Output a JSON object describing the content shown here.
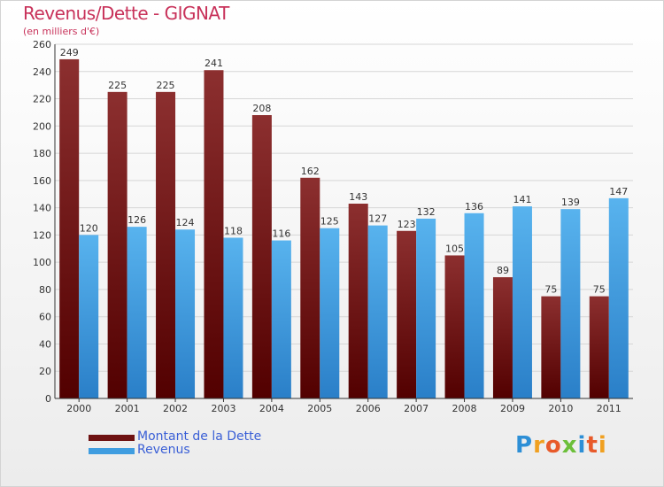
{
  "title": "Revenus/Dette - GIGNAT",
  "subtitle": "(en milliers d'€)",
  "legend": [
    {
      "label": "Montant de la Dette",
      "color": "#7a1e1e"
    },
    {
      "label": "Revenus",
      "color": "#3f9de0"
    }
  ],
  "logo": {
    "letters": [
      "P",
      "r",
      "o",
      "x",
      "i",
      "t",
      "i"
    ],
    "colors": [
      "#2d8fd6",
      "#f0a020",
      "#e85a2a",
      "#6cbf3a",
      "#2d8fd6",
      "#e85a2a",
      "#f0a020"
    ]
  },
  "chart_data": {
    "type": "bar",
    "categories": [
      "2000",
      "2001",
      "2002",
      "2003",
      "2004",
      "2005",
      "2006",
      "2007",
      "2008",
      "2009",
      "2010",
      "2011"
    ],
    "series": [
      {
        "name": "Montant de la Dette",
        "values": [
          249,
          225,
          225,
          241,
          208,
          162,
          143,
          123,
          105,
          89,
          75,
          75
        ],
        "color": "#7a1e1e"
      },
      {
        "name": "Revenus",
        "values": [
          120,
          126,
          124,
          118,
          116,
          125,
          127,
          132,
          136,
          141,
          139,
          147
        ],
        "color": "#3f9de0"
      }
    ],
    "ylim": [
      0,
      260
    ],
    "yticks": [
      0,
      20,
      40,
      60,
      80,
      100,
      120,
      140,
      160,
      180,
      200,
      220,
      240,
      260
    ],
    "grid": true
  }
}
